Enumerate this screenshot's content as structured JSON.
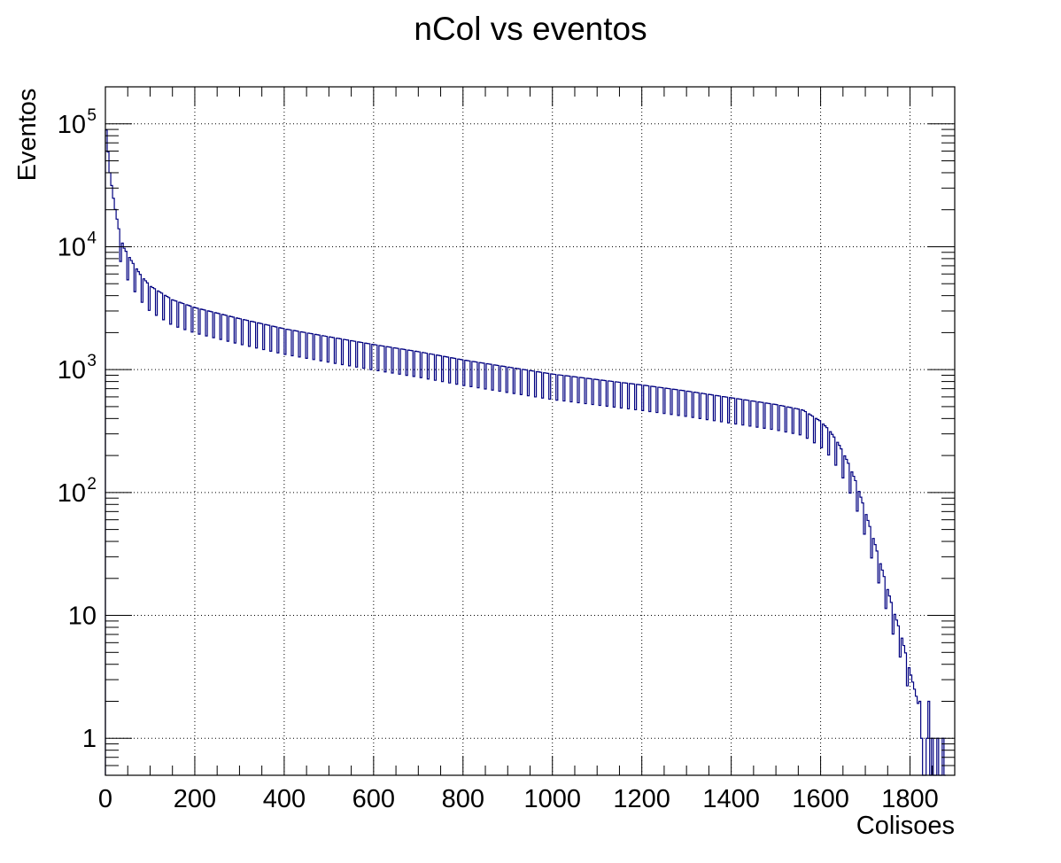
{
  "chart_data": {
    "type": "histogram",
    "title": "nCol vs eventos",
    "xlabel": "Colisoes",
    "ylabel": "Eventos",
    "xlim": [
      0,
      1900
    ],
    "ylim": [
      0.5,
      200000
    ],
    "y_scale": "log",
    "grid": true,
    "legend": "none",
    "line_color": "#000080",
    "x_ticks": [
      "0",
      "200",
      "400",
      "600",
      "800",
      "1000",
      "1200",
      "1400",
      "1600",
      "1800"
    ],
    "y_ticks": [
      {
        "value": 1,
        "label": "1"
      },
      {
        "value": 10,
        "label": "10"
      },
      {
        "value": 100,
        "label": "10",
        "exp": "2"
      },
      {
        "value": 1000,
        "label": "10",
        "exp": "3"
      },
      {
        "value": 10000,
        "label": "10",
        "exp": "4"
      },
      {
        "value": 100000,
        "label": "10",
        "exp": "5"
      }
    ],
    "envelope": [
      [
        0,
        110000
      ],
      [
        5,
        65000
      ],
      [
        10,
        40000
      ],
      [
        20,
        22000
      ],
      [
        30,
        14000
      ],
      [
        40,
        10000
      ],
      [
        60,
        7500
      ],
      [
        80,
        5800
      ],
      [
        100,
        4800
      ],
      [
        150,
        3700
      ],
      [
        200,
        3200
      ],
      [
        300,
        2600
      ],
      [
        400,
        2150
      ],
      [
        500,
        1850
      ],
      [
        600,
        1600
      ],
      [
        700,
        1400
      ],
      [
        800,
        1200
      ],
      [
        900,
        1050
      ],
      [
        1000,
        920
      ],
      [
        1100,
        830
      ],
      [
        1200,
        750
      ],
      [
        1300,
        670
      ],
      [
        1400,
        590
      ],
      [
        1500,
        520
      ],
      [
        1560,
        470
      ],
      [
        1600,
        380
      ],
      [
        1620,
        320
      ],
      [
        1640,
        250
      ],
      [
        1660,
        180
      ],
      [
        1680,
        120
      ],
      [
        1700,
        70
      ],
      [
        1720,
        40
      ],
      [
        1740,
        22
      ],
      [
        1760,
        12
      ],
      [
        1780,
        7
      ],
      [
        1800,
        3.5
      ],
      [
        1820,
        1.8
      ],
      [
        1840,
        1
      ],
      [
        1880,
        1
      ]
    ],
    "bin_width": 4,
    "dip_period": 4,
    "dip_factor": 0.62
  }
}
